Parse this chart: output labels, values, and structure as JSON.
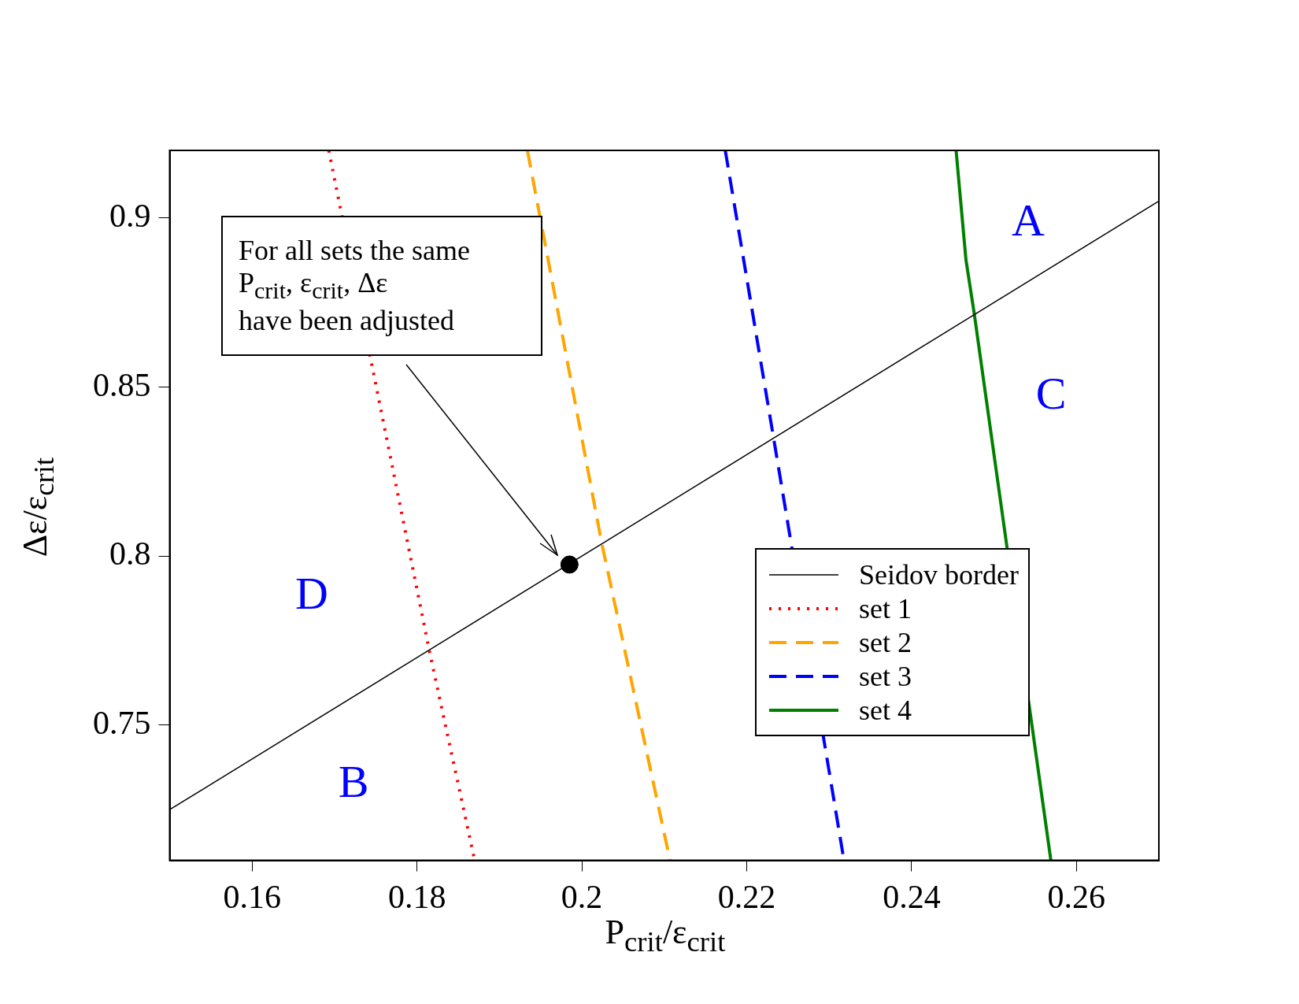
{
  "chart_data": {
    "type": "line",
    "xlabel": "P$_{crit}$/ε$_{crit}$",
    "ylabel": "Δε/ε$_{crit}$",
    "xlim": [
      0.15,
      0.27
    ],
    "xticks": [
      0.16,
      0.18,
      0.2,
      0.22,
      0.24,
      0.26
    ],
    "ylim": [
      0.71,
      0.92
    ],
    "yticks": [
      0.75,
      0.8,
      0.85,
      0.9
    ],
    "grid": false,
    "legend": "bottom right",
    "marker": "none",
    "series": [
      {
        "name": "Seidov border",
        "color": "#000000",
        "line_style": "solid",
        "x": [
          0.15,
          0.27
        ],
        "values": [
          0.725,
          0.905
        ]
      },
      {
        "name": "set 1",
        "color": "#ff0000",
        "line_style": "dotted",
        "x": [
          0.1693,
          0.1815,
          0.187
        ],
        "values": [
          0.92,
          0.772,
          0.71
        ]
      },
      {
        "name": "set 2",
        "color": "#ffa500",
        "line_style": "dashed",
        "x": [
          0.1934,
          0.2024,
          0.2107
        ],
        "values": [
          0.92,
          0.804,
          0.71
        ]
      },
      {
        "name": "set 3",
        "color": "#0000ff",
        "line_style": "dashed",
        "x": [
          0.2174,
          0.2233,
          0.2318
        ],
        "values": [
          0.92,
          0.8344,
          0.71
        ]
      },
      {
        "name": "set 4",
        "color": "#008000",
        "line_style": "solid",
        "x": [
          0.2454,
          0.2466,
          0.2476,
          0.2569
        ],
        "values": [
          0.92,
          0.8876,
          0.8718,
          0.71
        ]
      },
      {
        "type": "scatter",
        "color": "#000000",
        "marker": "circle",
        "x": [
          0.1985
        ],
        "values": [
          0.7975
        ]
      }
    ],
    "annotations": [
      "For all sets the same\nP$_{crit}$, ε$_{crit}$, Δε\nhave been adjusted",
      "A",
      "C",
      "D",
      "B"
    ]
  }
}
